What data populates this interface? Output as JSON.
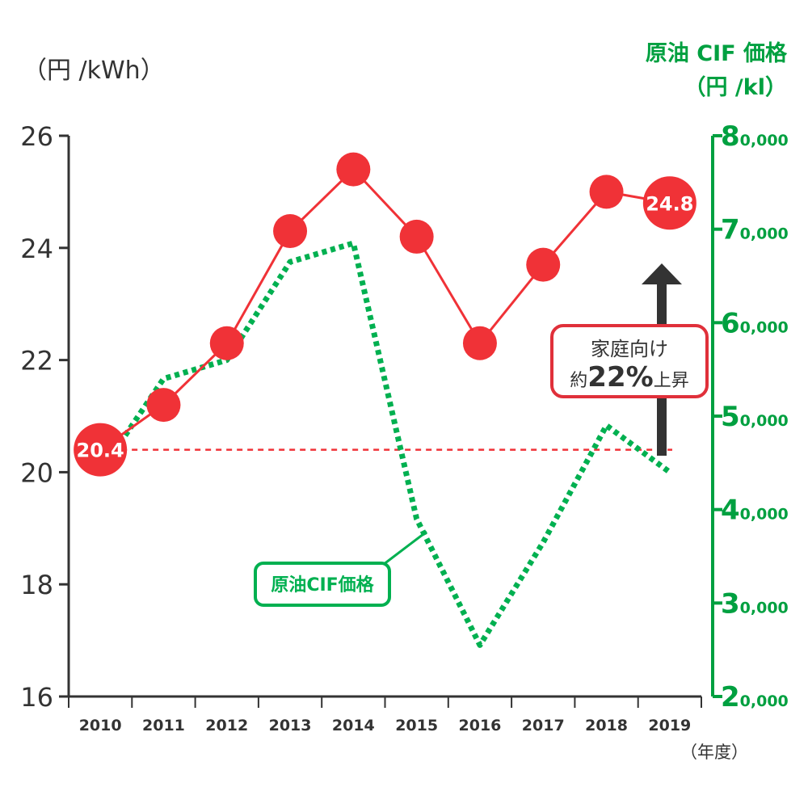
{
  "chart_data": {
    "type": "line",
    "categories": [
      "2010",
      "2011",
      "2012",
      "2013",
      "2014",
      "2015",
      "2016",
      "2017",
      "2018",
      "2019"
    ],
    "x_unit": "（年度）",
    "left_axis": {
      "unit_label": "（円 /kWh）",
      "ylim": [
        16,
        26
      ],
      "ticks": [
        "16",
        "18",
        "20",
        "22",
        "24",
        "26"
      ]
    },
    "right_axis": {
      "title": "原油 CIF 価格",
      "unit_label": "（円 /kl）",
      "ylim": [
        20000,
        80000
      ],
      "ticks": [
        {
          "value": 20000,
          "major": "2",
          "minor": "0,000"
        },
        {
          "value": 30000,
          "major": "3",
          "minor": "0,000"
        },
        {
          "value": 40000,
          "major": "4",
          "minor": "0,000"
        },
        {
          "value": 50000,
          "major": "5",
          "minor": "0,000"
        },
        {
          "value": 60000,
          "major": "6",
          "minor": "0,000"
        },
        {
          "value": 70000,
          "major": "7",
          "minor": "0,000"
        },
        {
          "value": 80000,
          "major": "8",
          "minor": "0,000"
        }
      ]
    },
    "series": [
      {
        "axis": "left",
        "color": "#f03237",
        "style": "solid-markers",
        "values": [
          20.4,
          21.2,
          22.3,
          24.3,
          25.4,
          24.2,
          22.3,
          23.7,
          25.0,
          24.8
        ]
      },
      {
        "name": "原油CIF価格",
        "axis": "right",
        "color": "#00b050",
        "style": "dotted",
        "values": [
          44000,
          54000,
          56000,
          66500,
          68500,
          39000,
          25500,
          36500,
          49000,
          44000
        ]
      }
    ],
    "data_labels": {
      "first": "20.4",
      "last": "24.8"
    },
    "reference_line": {
      "value": 20.4,
      "color": "#f03237",
      "style": "dashed"
    },
    "annotation": {
      "line1": "家庭向け",
      "line2_prefix": "約",
      "line2_value": "22%",
      "line2_suffix": "上昇",
      "border_color": "#e0303a"
    },
    "legend_box": {
      "text": "原油CIF価格",
      "color": "#00b050"
    },
    "colors": {
      "axis_left": "#333333",
      "axis_right": "#00a040",
      "arrow": "#333333"
    }
  }
}
